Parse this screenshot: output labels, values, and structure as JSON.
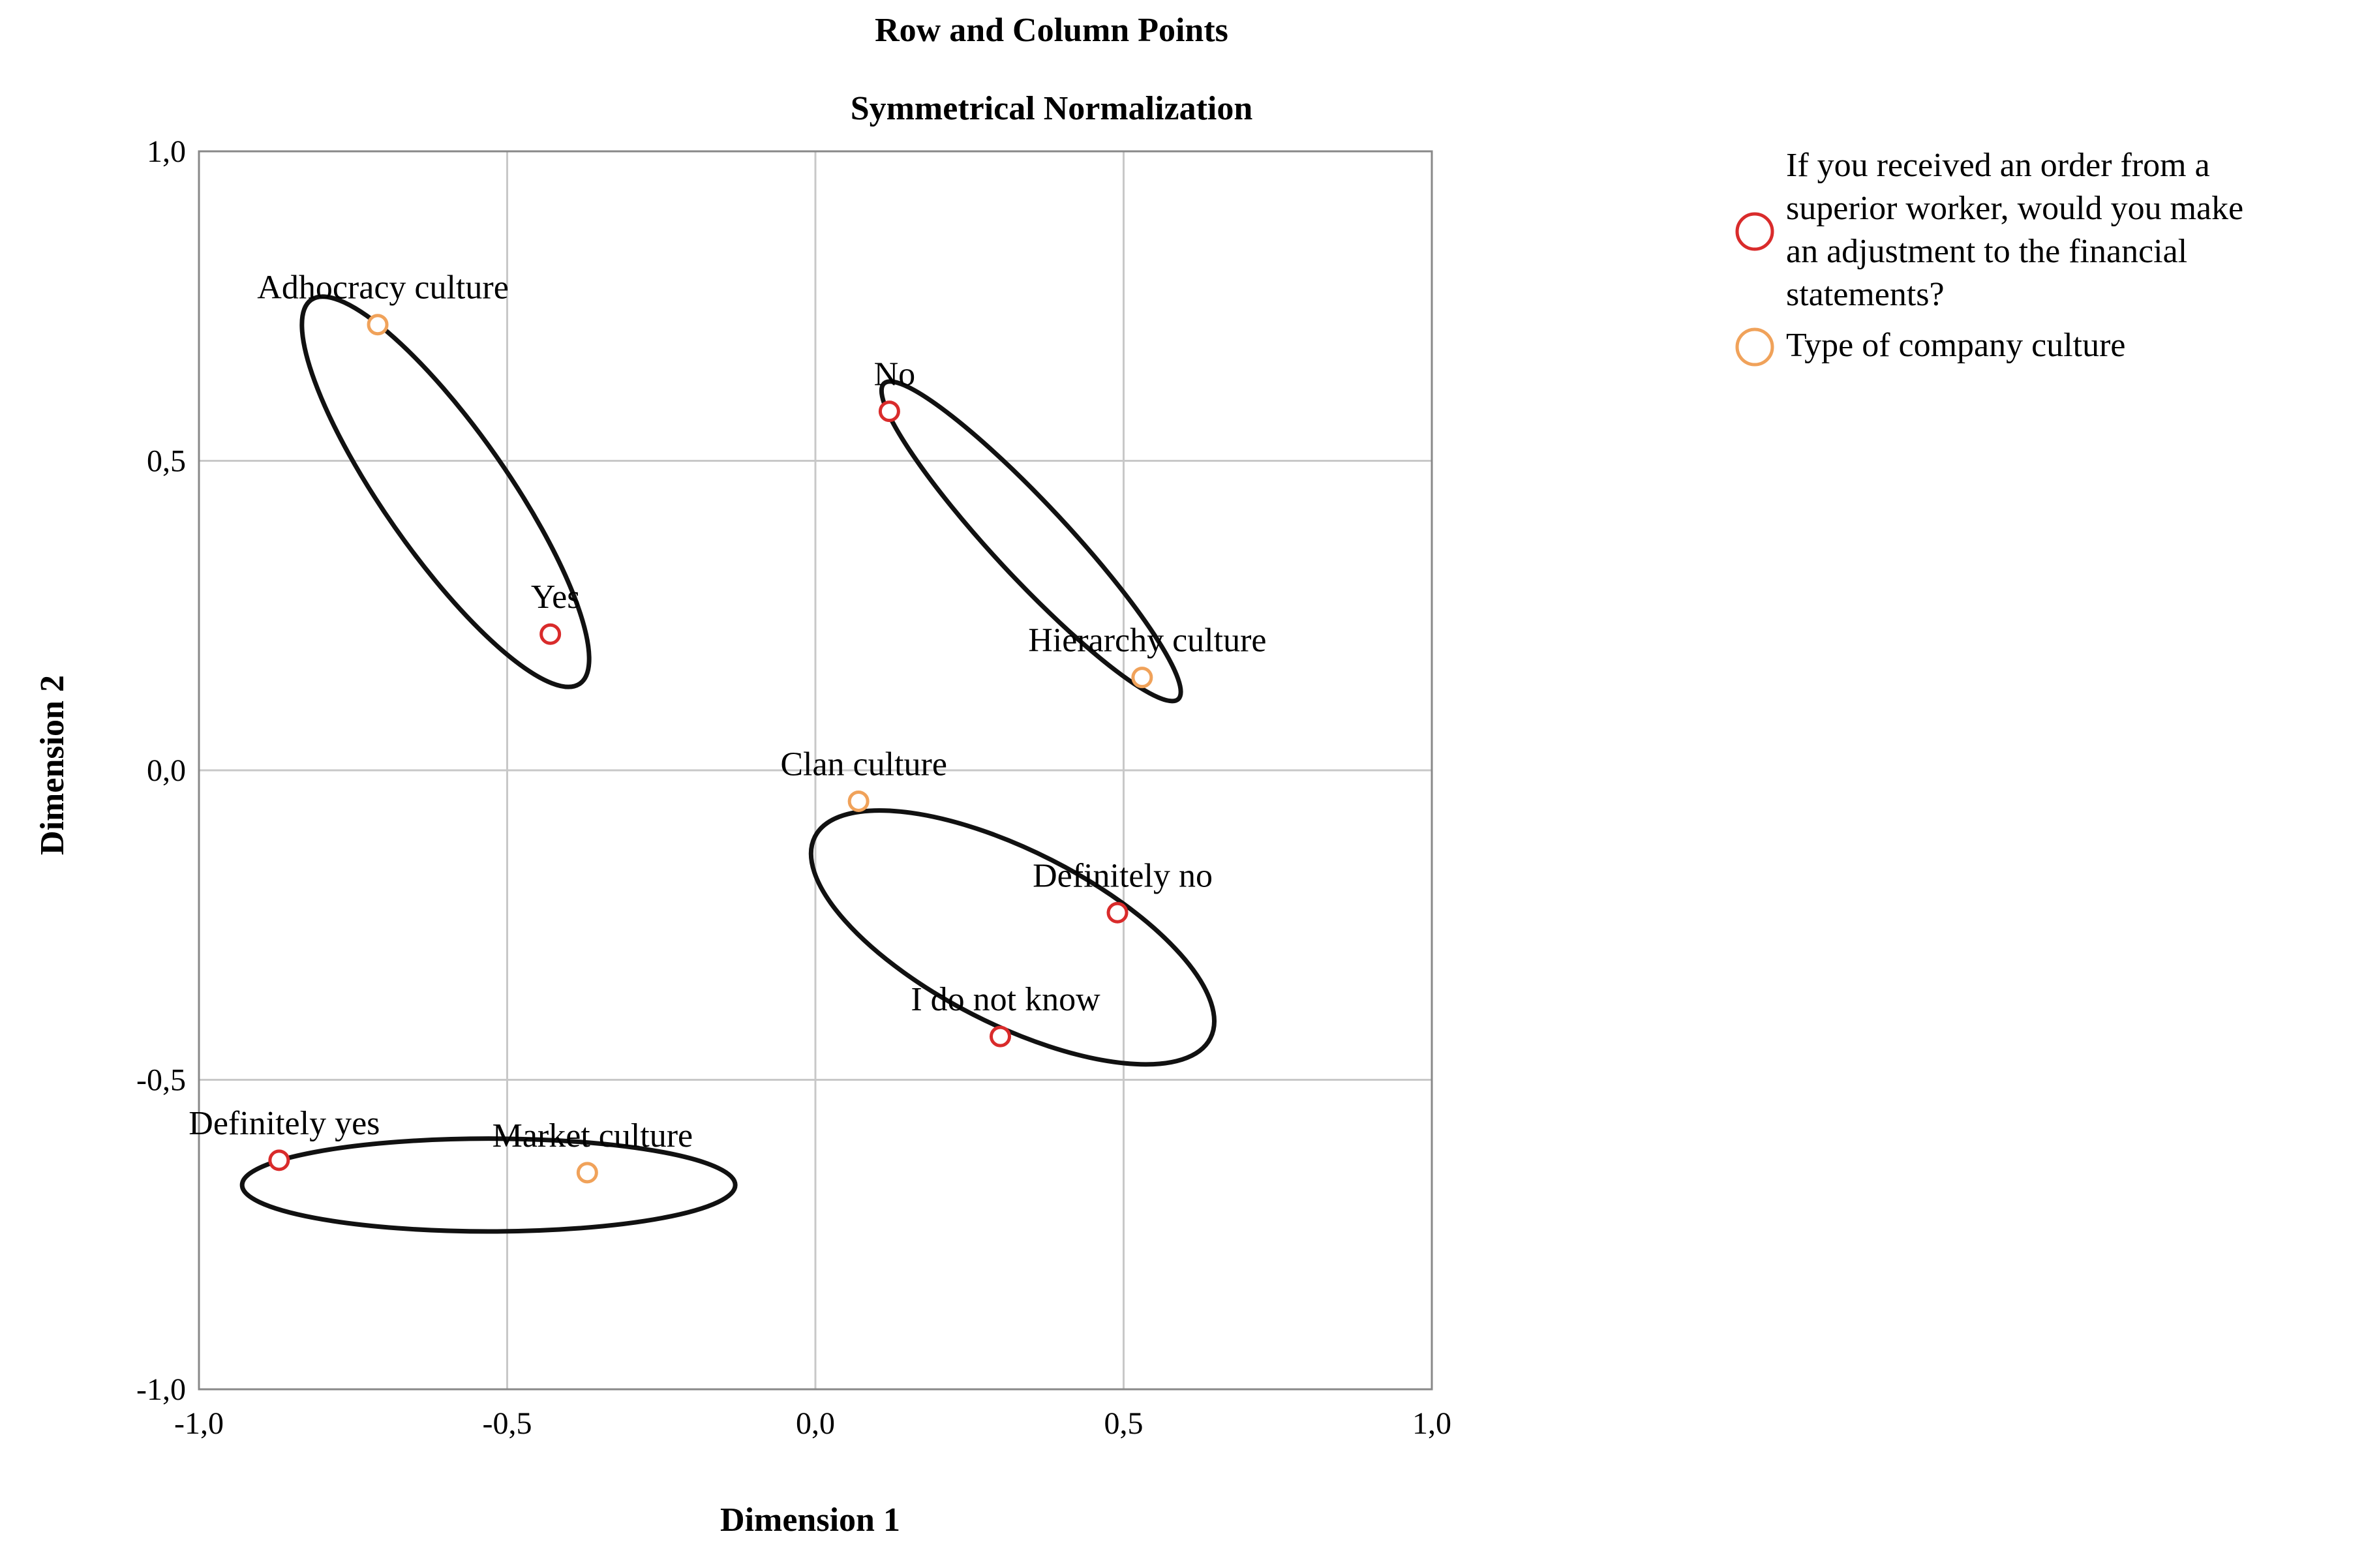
{
  "chart_data": {
    "type": "scatter",
    "title": "Row and Column Points",
    "subtitle": "Symmetrical Normalization",
    "xlabel": "Dimension 1",
    "ylabel": "Dimension 2",
    "xlim": [
      -1.0,
      1.0
    ],
    "ylim": [
      -1.0,
      1.0
    ],
    "xticks": [
      -1.0,
      -0.5,
      0.0,
      0.5,
      1.0
    ],
    "yticks": [
      -1.0,
      -0.5,
      0.0,
      0.5,
      1.0
    ],
    "xtick_labels": [
      "-1,0",
      "-0,5",
      "0,0",
      "0,5",
      "1,0"
    ],
    "ytick_labels": [
      "-1,0",
      "-0,5",
      "0,0",
      "0,5",
      "1,0"
    ],
    "grid": true,
    "legend_position": "top-right outside",
    "series": [
      {
        "name": "If you received an order from a superior worker, would you make an adjustment to the financial statements?",
        "legend_lines": [
          "If you received an order from a",
          "superior worker, would you make",
          "an adjustment to the financial",
          "statements?"
        ],
        "color": "#d92b2b",
        "points": [
          {
            "label": "No",
            "x": 0.12,
            "y": 0.58
          },
          {
            "label": "Yes",
            "x": -0.43,
            "y": 0.22
          },
          {
            "label": "Definitely no",
            "x": 0.49,
            "y": -0.23
          },
          {
            "label": "I do not know",
            "x": 0.3,
            "y": -0.43
          },
          {
            "label": "Definitely yes",
            "x": -0.87,
            "y": -0.63
          }
        ]
      },
      {
        "name": "Type of company culture",
        "legend_lines": [
          "Type of company culture"
        ],
        "color": "#f0a25a",
        "points": [
          {
            "label": "Adhocracy culture",
            "x": -0.71,
            "y": 0.72
          },
          {
            "label": "Hierarchy culture",
            "x": 0.53,
            "y": 0.15
          },
          {
            "label": "Clan culture",
            "x": 0.07,
            "y": -0.05
          },
          {
            "label": "Market culture",
            "x": -0.37,
            "y": -0.65
          }
        ]
      }
    ],
    "annotations": [
      {
        "shape": "ellipse",
        "cx": -0.6,
        "cy": 0.45,
        "rx": 0.38,
        "ry": 0.1,
        "angle_deg": 55
      },
      {
        "shape": "ellipse",
        "cx": 0.35,
        "cy": 0.37,
        "rx": 0.35,
        "ry": 0.06,
        "angle_deg": 47
      },
      {
        "shape": "ellipse",
        "cx": 0.32,
        "cy": -0.27,
        "rx": 0.36,
        "ry": 0.14,
        "angle_deg": 27
      },
      {
        "shape": "ellipse",
        "cx": -0.53,
        "cy": -0.67,
        "rx": 0.4,
        "ry": 0.075,
        "angle_deg": 0
      }
    ]
  }
}
